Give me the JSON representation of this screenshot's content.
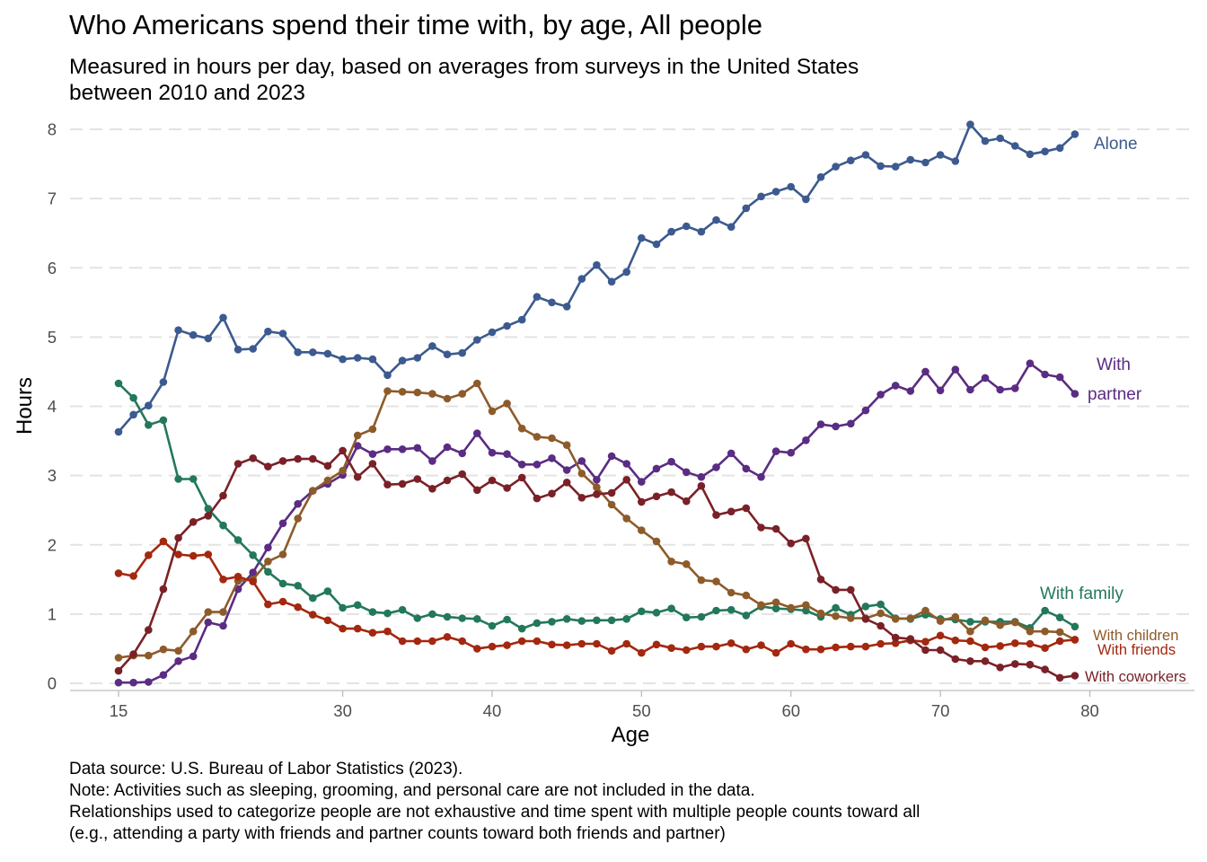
{
  "chart_data": {
    "type": "line",
    "title": "Who Americans spend their time with, by age, All people",
    "subtitle": "Measured in hours per day, based on averages from surveys in the United States between 2010 and 2023",
    "subtitle_lines": [
      "Measured in hours per day, based on averages from surveys in the United States",
      "between 2010 and 2023"
    ],
    "xlabel": "Age",
    "ylabel": "Hours",
    "xlim": [
      15,
      80
    ],
    "ylim": [
      0,
      8
    ],
    "x_ticks": [
      15,
      30,
      40,
      50,
      60,
      70,
      80
    ],
    "y_ticks": [
      0,
      1,
      2,
      3,
      4,
      5,
      6,
      7,
      8
    ],
    "grid": "horizontal dashed",
    "legend": "direct labels at right end of lines",
    "x": [
      15,
      16,
      17,
      18,
      19,
      20,
      21,
      22,
      23,
      24,
      25,
      26,
      27,
      28,
      29,
      30,
      31,
      32,
      33,
      34,
      35,
      36,
      37,
      38,
      39,
      40,
      41,
      42,
      43,
      44,
      45,
      46,
      47,
      48,
      49,
      50,
      51,
      52,
      53,
      54,
      55,
      56,
      57,
      58,
      59,
      60,
      61,
      62,
      63,
      64,
      65,
      66,
      67,
      68,
      69,
      70,
      71,
      72,
      73,
      74,
      75,
      76,
      77,
      78,
      79
    ],
    "series": [
      {
        "name": "Alone",
        "label_lines": [
          "Alone"
        ],
        "color": "#3c5a8f",
        "values": [
          3.63,
          3.88,
          4.01,
          4.35,
          5.1,
          5.03,
          4.98,
          5.28,
          4.82,
          4.83,
          5.08,
          5.05,
          4.78,
          4.78,
          4.76,
          4.68,
          4.7,
          4.68,
          4.45,
          4.66,
          4.7,
          4.87,
          4.75,
          4.77,
          4.96,
          5.07,
          5.16,
          5.25,
          5.58,
          5.5,
          5.44,
          5.84,
          6.04,
          5.8,
          5.94,
          6.43,
          6.34,
          6.52,
          6.6,
          6.52,
          6.69,
          6.59,
          6.86,
          7.03,
          7.1,
          7.17,
          6.99,
          7.31,
          7.46,
          7.55,
          7.63,
          7.47,
          7.46,
          7.56,
          7.52,
          7.63,
          7.54,
          8.07,
          7.83,
          7.87,
          7.76,
          7.64,
          7.68,
          7.73,
          7.93
        ]
      },
      {
        "name": "With partner",
        "label_lines": [
          "With",
          "partner"
        ],
        "color": "#5b2c83",
        "values": [
          0.01,
          0.01,
          0.02,
          0.12,
          0.32,
          0.39,
          0.88,
          0.83,
          1.36,
          1.6,
          1.96,
          2.31,
          2.59,
          2.78,
          2.88,
          3.01,
          3.43,
          3.31,
          3.38,
          3.38,
          3.4,
          3.21,
          3.41,
          3.32,
          3.61,
          3.33,
          3.31,
          3.16,
          3.16,
          3.25,
          3.08,
          3.21,
          2.94,
          3.28,
          3.17,
          2.91,
          3.1,
          3.2,
          3.05,
          2.98,
          3.12,
          3.32,
          3.1,
          2.98,
          3.35,
          3.33,
          3.51,
          3.74,
          3.71,
          3.75,
          3.94,
          4.17,
          4.3,
          4.22,
          4.5,
          4.23,
          4.53,
          4.24,
          4.41,
          4.24,
          4.26,
          4.62,
          4.46,
          4.42,
          4.18
        ]
      },
      {
        "name": "With family",
        "label_lines": [
          "With family"
        ],
        "color": "#23785a",
        "values": [
          4.33,
          4.12,
          3.73,
          3.8,
          2.95,
          2.95,
          2.52,
          2.28,
          2.07,
          1.85,
          1.61,
          1.44,
          1.41,
          1.23,
          1.33,
          1.09,
          1.13,
          1.03,
          1.01,
          1.06,
          0.94,
          1.0,
          0.96,
          0.94,
          0.93,
          0.83,
          0.92,
          0.79,
          0.87,
          0.89,
          0.93,
          0.9,
          0.91,
          0.91,
          0.93,
          1.04,
          1.02,
          1.08,
          0.95,
          0.96,
          1.05,
          1.06,
          0.98,
          1.11,
          1.08,
          1.07,
          1.05,
          0.96,
          1.09,
          0.99,
          1.11,
          1.14,
          0.94,
          0.93,
          0.99,
          0.93,
          0.92,
          0.89,
          0.89,
          0.89,
          0.89,
          0.8,
          1.05,
          0.95,
          0.82
        ]
      },
      {
        "name": "With children",
        "label_lines": [
          "With children"
        ],
        "color": "#8d5b2a",
        "values": [
          0.37,
          0.4,
          0.4,
          0.49,
          0.47,
          0.75,
          1.03,
          1.03,
          1.48,
          1.5,
          1.76,
          1.86,
          2.38,
          2.78,
          2.93,
          3.07,
          3.58,
          3.67,
          4.22,
          4.21,
          4.2,
          4.18,
          4.11,
          4.18,
          4.33,
          3.93,
          4.04,
          3.68,
          3.56,
          3.54,
          3.44,
          3.03,
          2.83,
          2.58,
          2.38,
          2.21,
          2.05,
          1.76,
          1.72,
          1.49,
          1.47,
          1.31,
          1.27,
          1.13,
          1.17,
          1.09,
          1.13,
          1.01,
          0.97,
          0.94,
          0.94,
          1.01,
          0.93,
          0.94,
          1.05,
          0.9,
          0.96,
          0.75,
          0.91,
          0.84,
          0.88,
          0.75,
          0.75,
          0.74,
          0.63
        ]
      },
      {
        "name": "With friends",
        "label_lines": [
          "With friends"
        ],
        "color": "#a3280f",
        "values": [
          1.59,
          1.55,
          1.85,
          2.05,
          1.86,
          1.84,
          1.86,
          1.5,
          1.54,
          1.47,
          1.14,
          1.18,
          1.1,
          0.99,
          0.91,
          0.79,
          0.79,
          0.73,
          0.75,
          0.61,
          0.61,
          0.61,
          0.67,
          0.61,
          0.5,
          0.53,
          0.55,
          0.61,
          0.61,
          0.56,
          0.55,
          0.57,
          0.57,
          0.47,
          0.57,
          0.44,
          0.56,
          0.51,
          0.48,
          0.53,
          0.53,
          0.58,
          0.49,
          0.55,
          0.44,
          0.57,
          0.49,
          0.49,
          0.52,
          0.53,
          0.53,
          0.57,
          0.58,
          0.62,
          0.6,
          0.69,
          0.62,
          0.61,
          0.52,
          0.54,
          0.58,
          0.57,
          0.51,
          0.61,
          0.63
        ]
      },
      {
        "name": "With coworkers",
        "label_lines": [
          "With coworkers"
        ],
        "color": "#7a2128",
        "values": [
          0.18,
          0.42,
          0.77,
          1.36,
          2.1,
          2.33,
          2.42,
          2.71,
          3.17,
          3.25,
          3.13,
          3.21,
          3.24,
          3.24,
          3.14,
          3.36,
          2.98,
          3.17,
          2.87,
          2.88,
          2.95,
          2.81,
          2.93,
          3.02,
          2.79,
          2.93,
          2.82,
          2.97,
          2.67,
          2.74,
          2.9,
          2.68,
          2.73,
          2.75,
          2.94,
          2.62,
          2.7,
          2.76,
          2.63,
          2.85,
          2.43,
          2.48,
          2.53,
          2.25,
          2.23,
          2.02,
          2.09,
          1.5,
          1.35,
          1.35,
          0.93,
          0.83,
          0.66,
          0.64,
          0.48,
          0.48,
          0.35,
          0.32,
          0.32,
          0.23,
          0.28,
          0.27,
          0.2,
          0.08,
          0.11
        ]
      }
    ],
    "notes": [
      "Data source: U.S. Bureau of Labor Statistics (2023).",
      "Note: Activities such as sleeping, grooming, and personal care are not included in the data.",
      "Relationships used to categorize people are not exhaustive and time spent with multiple people counts toward all",
      "(e.g., attending a party with friends and partner counts toward both friends and partner)"
    ]
  }
}
